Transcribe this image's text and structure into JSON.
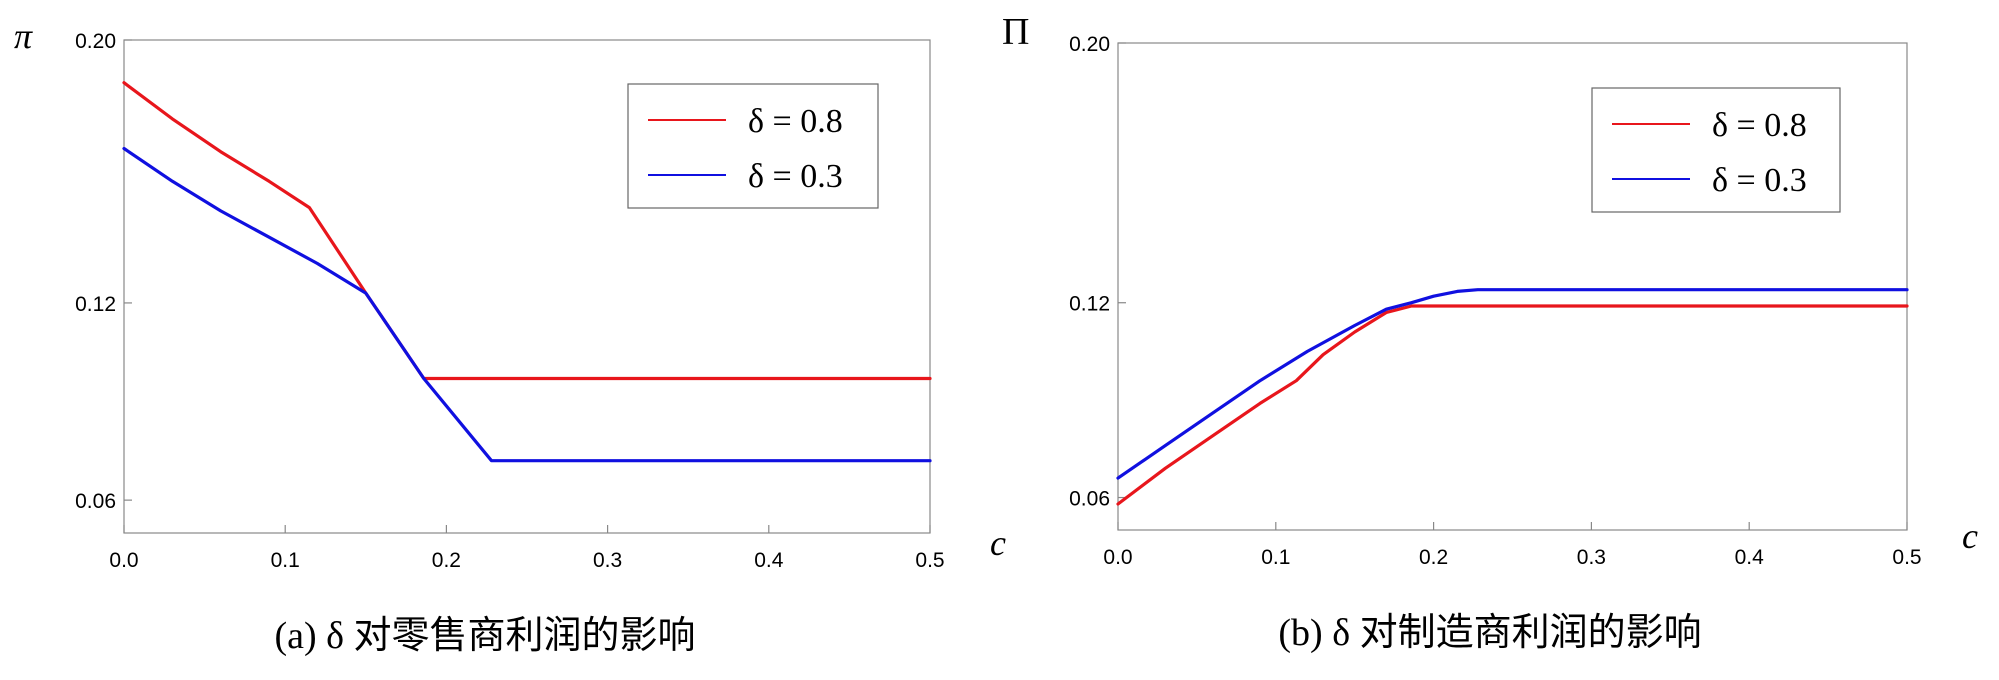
{
  "chart_data": [
    {
      "type": "line",
      "ylabel": "π",
      "xlabel": "c",
      "xlim": [
        0,
        0.5
      ],
      "ylim": [
        0.05,
        0.2
      ],
      "xticks": [
        "0.0",
        "0.1",
        "0.2",
        "0.3",
        "0.4",
        "0.5"
      ],
      "yticks": [
        "0.20",
        "0.12",
        "0.06"
      ],
      "legend_position": "top-right",
      "caption": "(a) δ 对零售商利润的影响",
      "series": [
        {
          "name": "δ = 0.8",
          "color": "#e8161c",
          "x": [
            0,
            0.03,
            0.06,
            0.09,
            0.115,
            0.15,
            0.186,
            0.25,
            0.35,
            0.5
          ],
          "y": [
            0.187,
            0.176,
            0.166,
            0.157,
            0.149,
            0.123,
            0.097,
            0.097,
            0.097,
            0.097
          ]
        },
        {
          "name": "δ = 0.3",
          "color": "#1010e0",
          "x": [
            0,
            0.03,
            0.06,
            0.09,
            0.12,
            0.15,
            0.186,
            0.228,
            0.3,
            0.4,
            0.5
          ],
          "y": [
            0.167,
            0.157,
            0.148,
            0.14,
            0.132,
            0.123,
            0.097,
            0.072,
            0.072,
            0.072,
            0.072
          ]
        }
      ]
    },
    {
      "type": "line",
      "ylabel": "Π",
      "xlabel": "c",
      "xlim": [
        0,
        0.5
      ],
      "ylim": [
        0.05,
        0.2
      ],
      "xticks": [
        "0.0",
        "0.1",
        "0.2",
        "0.3",
        "0.4",
        "0.5"
      ],
      "yticks": [
        "0.20",
        "0.12",
        "0.06"
      ],
      "legend_position": "top-right",
      "caption": "(b) δ 对制造商利润的影响",
      "series": [
        {
          "name": "δ = 0.8",
          "color": "#e8161c",
          "x": [
            0,
            0.03,
            0.06,
            0.09,
            0.113,
            0.13,
            0.15,
            0.17,
            0.186,
            0.25,
            0.35,
            0.5
          ],
          "y": [
            0.058,
            0.069,
            0.079,
            0.089,
            0.096,
            0.104,
            0.111,
            0.117,
            0.119,
            0.119,
            0.119,
            0.119
          ]
        },
        {
          "name": "δ = 0.3",
          "color": "#1010e0",
          "x": [
            0,
            0.03,
            0.06,
            0.09,
            0.12,
            0.15,
            0.17,
            0.186,
            0.2,
            0.215,
            0.228,
            0.3,
            0.4,
            0.5
          ],
          "y": [
            0.066,
            0.076,
            0.086,
            0.096,
            0.105,
            0.113,
            0.118,
            0.12,
            0.122,
            0.1235,
            0.124,
            0.124,
            0.124,
            0.124
          ]
        }
      ]
    }
  ]
}
